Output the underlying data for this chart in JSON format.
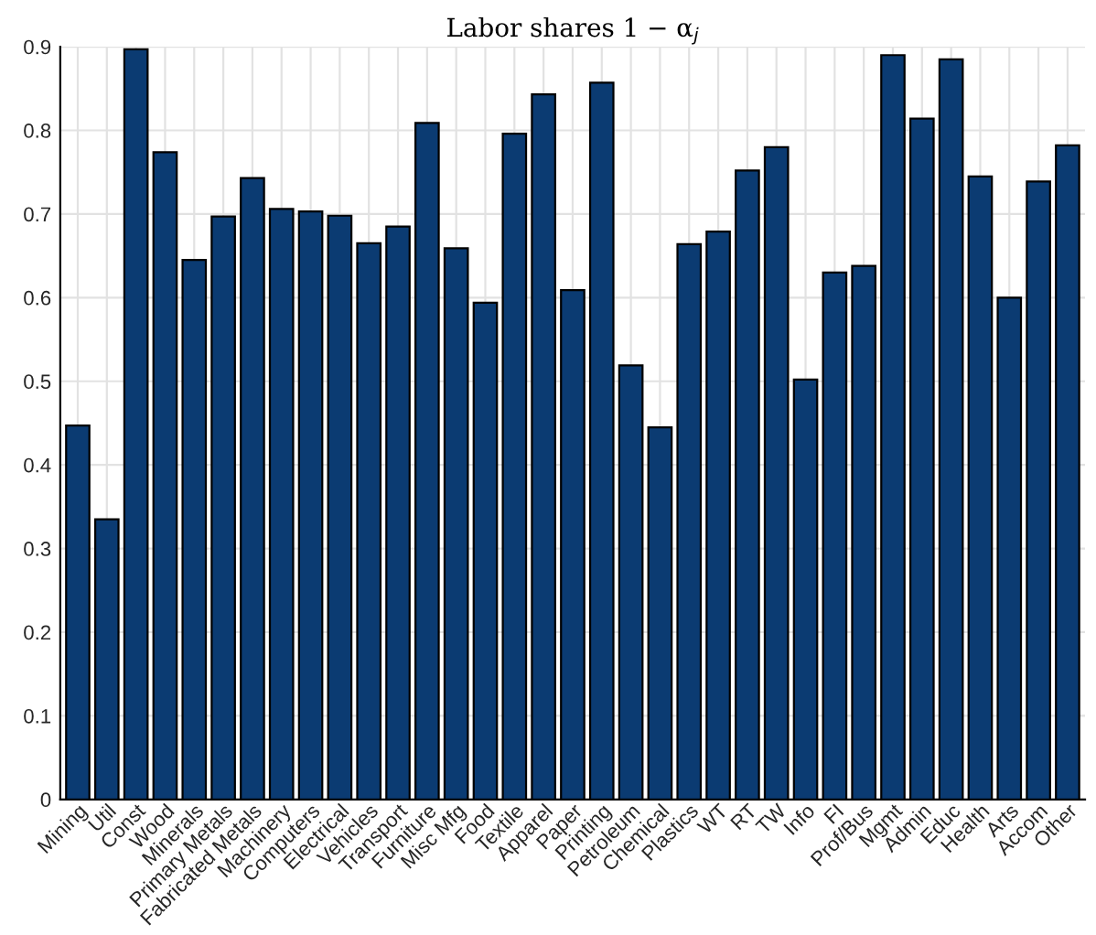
{
  "chart_data": {
    "type": "bar",
    "title": "Labor shares 1 − α$_{j}$",
    "categories": [
      "Mining",
      "Util",
      "Const",
      "Wood",
      "Minerals",
      "Primary Metals",
      "Fabricated Metals",
      "Machinery",
      "Computers",
      "Electrical",
      "Vehicles",
      "Transport",
      "Furniture",
      "Misc Mfg",
      "Food",
      "Textile",
      "Apparel",
      "Paper",
      "Printing",
      "Petroleum",
      "Chemical",
      "Plastics",
      "WT",
      "RT",
      "TW",
      "Info",
      "FI",
      "Prof/Bus",
      "Mgmt",
      "Admin",
      "Educ",
      "Health",
      "Arts",
      "Accom",
      "Other"
    ],
    "values": [
      0.447,
      0.335,
      0.897,
      0.774,
      0.645,
      0.697,
      0.743,
      0.706,
      0.703,
      0.698,
      0.665,
      0.685,
      0.809,
      0.659,
      0.594,
      0.796,
      0.843,
      0.609,
      0.857,
      0.519,
      0.445,
      0.664,
      0.679,
      0.752,
      0.78,
      0.502,
      0.63,
      0.638,
      0.89,
      0.814,
      0.885,
      0.745,
      0.6,
      0.739,
      0.782
    ],
    "color": "#0b3b72",
    "ylim": [
      0,
      0.9
    ],
    "yticks": [
      0,
      0.1,
      0.2,
      0.3,
      0.4,
      0.5,
      0.6,
      0.7,
      0.8,
      0.9
    ],
    "grid": true
  }
}
